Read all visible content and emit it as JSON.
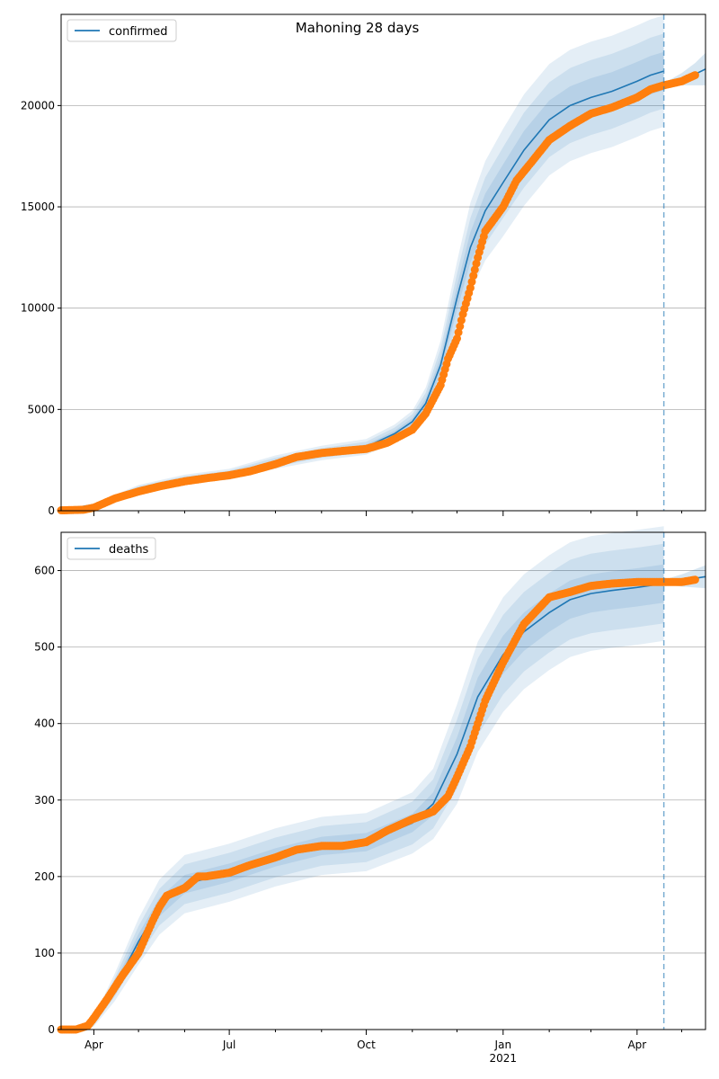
{
  "figure": {
    "title": "Mahoning 28 days"
  },
  "colors": {
    "model_line": "#1f77b4",
    "band": "#1f77b4",
    "observed": "#ff7f0e",
    "forecast_start": "#1f77b4",
    "grid": "#b0b0b0"
  },
  "x_axis": {
    "range": [
      "2020-03-10",
      "2021-05-17"
    ],
    "major_ticks": [
      {
        "date": "2020-04-01",
        "label": "Apr"
      },
      {
        "date": "2020-07-01",
        "label": "Jul"
      },
      {
        "date": "2020-10-01",
        "label": "Oct"
      },
      {
        "date": "2021-01-01",
        "label": "Jan",
        "sublabel": "2021"
      },
      {
        "date": "2021-04-01",
        "label": "Apr"
      }
    ],
    "minor_ticks": [
      "2020-05-01",
      "2020-06-01",
      "2020-08-01",
      "2020-09-01",
      "2020-11-01",
      "2020-12-01",
      "2021-02-01",
      "2021-03-01",
      "2021-05-01"
    ]
  },
  "forecast_start_date": "2021-04-19",
  "chart_data": [
    {
      "type": "line",
      "name": "confirmed",
      "legend": "confirmed",
      "legend_position": "top-left",
      "grid": "horizontal",
      "ylim": [
        0,
        24500
      ],
      "yticks": [
        0,
        5000,
        10000,
        15000,
        20000
      ],
      "model_x": [
        "2020-03-10",
        "2020-04-01",
        "2020-05-01",
        "2020-06-01",
        "2020-07-01",
        "2020-08-01",
        "2020-09-01",
        "2020-10-01",
        "2020-10-20",
        "2020-11-01",
        "2020-11-10",
        "2020-11-20",
        "2020-12-01",
        "2020-12-10",
        "2020-12-20",
        "2021-01-01",
        "2021-01-15",
        "2021-02-01",
        "2021-02-15",
        "2021-03-01",
        "2021-03-15",
        "2021-04-01",
        "2021-04-10",
        "2021-04-19"
      ],
      "model_y": [
        30,
        300,
        1100,
        1550,
        1800,
        2400,
        2850,
        3150,
        3800,
        4400,
        5300,
        7200,
        10500,
        13000,
        14800,
        16200,
        17800,
        19300,
        20000,
        20400,
        20700,
        21200,
        21500,
        21700
      ],
      "band_half_widths": [
        [
          0,
          20,
          50,
          70,
          80,
          100,
          110,
          120,
          140,
          170,
          250,
          400,
          600,
          750,
          850,
          900,
          950,
          950,
          950,
          950,
          950,
          950,
          950,
          950
        ],
        [
          0,
          40,
          110,
          150,
          180,
          220,
          240,
          260,
          300,
          360,
          520,
          800,
          1200,
          1450,
          1650,
          1750,
          1850,
          1850,
          1850,
          1850,
          1850,
          1850,
          1850,
          1850
        ],
        [
          0,
          60,
          170,
          230,
          270,
          330,
          360,
          390,
          450,
          540,
          780,
          1200,
          1800,
          2200,
          2450,
          2650,
          2750,
          2750,
          2750,
          2750,
          2750,
          2750,
          2750,
          2750
        ]
      ],
      "forecast_x": [
        "2021-04-19",
        "2021-05-01",
        "2021-05-10",
        "2021-05-17"
      ],
      "forecast_y": [
        21000,
        21300,
        21550,
        21800
      ],
      "forecast_half_width": [
        100,
        300,
        550,
        800
      ],
      "observed_x": [
        "2020-03-10",
        "2020-03-25",
        "2020-04-01",
        "2020-04-15",
        "2020-05-01",
        "2020-05-15",
        "2020-06-01",
        "2020-06-15",
        "2020-07-01",
        "2020-07-15",
        "2020-08-01",
        "2020-08-15",
        "2020-09-01",
        "2020-09-15",
        "2020-10-01",
        "2020-10-15",
        "2020-11-01",
        "2020-11-10",
        "2020-11-20",
        "2020-11-25",
        "2020-12-01",
        "2020-12-05",
        "2020-12-10",
        "2020-12-15",
        "2020-12-20",
        "2021-01-01",
        "2021-01-10",
        "2021-01-20",
        "2021-02-01",
        "2021-02-15",
        "2021-03-01",
        "2021-03-15",
        "2021-04-01",
        "2021-04-10",
        "2021-04-19",
        "2021-05-01",
        "2021-05-10"
      ],
      "observed_y": [
        20,
        50,
        150,
        600,
        950,
        1200,
        1450,
        1600,
        1750,
        1950,
        2300,
        2650,
        2850,
        2950,
        3050,
        3350,
        4000,
        4800,
        6200,
        7500,
        8500,
        9700,
        11000,
        12500,
        13800,
        15000,
        16300,
        17200,
        18300,
        19000,
        19600,
        19900,
        20400,
        20800,
        21000,
        21200,
        21500
      ]
    },
    {
      "type": "line",
      "name": "deaths",
      "legend": "deaths",
      "legend_position": "top-left",
      "grid": "horizontal",
      "ylim": [
        0,
        650
      ],
      "yticks": [
        0,
        100,
        200,
        300,
        400,
        500,
        600
      ],
      "model_x": [
        "2020-03-10",
        "2020-03-25",
        "2020-04-01",
        "2020-04-15",
        "2020-05-01",
        "2020-05-15",
        "2020-06-01",
        "2020-07-01",
        "2020-08-01",
        "2020-09-01",
        "2020-10-01",
        "2020-11-01",
        "2020-11-15",
        "2020-12-01",
        "2020-12-15",
        "2021-01-01",
        "2021-01-15",
        "2021-02-01",
        "2021-02-15",
        "2021-03-01",
        "2021-03-15",
        "2021-04-01",
        "2021-04-19"
      ],
      "model_y": [
        0,
        0,
        10,
        55,
        115,
        160,
        190,
        205,
        225,
        240,
        245,
        270,
        295,
        360,
        435,
        490,
        520,
        545,
        562,
        570,
        574,
        578,
        583
      ],
      "band_half_widths": [
        [
          0,
          0,
          2,
          6,
          10,
          12,
          12,
          12,
          12,
          12,
          12,
          12,
          15,
          22,
          25,
          25,
          25,
          25,
          25,
          25,
          25,
          25,
          25
        ],
        [
          0,
          0,
          4,
          12,
          20,
          24,
          26,
          26,
          26,
          26,
          26,
          28,
          32,
          45,
          50,
          52,
          52,
          52,
          52,
          52,
          52,
          52,
          52
        ],
        [
          0,
          0,
          6,
          18,
          30,
          36,
          38,
          38,
          38,
          38,
          38,
          40,
          46,
          65,
          72,
          75,
          75,
          75,
          75,
          75,
          75,
          75,
          75
        ]
      ],
      "forecast_x": [
        "2021-04-19",
        "2021-05-01",
        "2021-05-17"
      ],
      "forecast_y": [
        585,
        587,
        592
      ],
      "forecast_half_width": [
        3,
        8,
        15
      ],
      "observed_x": [
        "2020-03-10",
        "2020-03-20",
        "2020-03-28",
        "2020-04-01",
        "2020-04-10",
        "2020-04-20",
        "2020-05-01",
        "2020-05-10",
        "2020-05-15",
        "2020-05-20",
        "2020-06-01",
        "2020-06-10",
        "2020-06-15",
        "2020-07-01",
        "2020-07-15",
        "2020-08-01",
        "2020-08-15",
        "2020-09-01",
        "2020-09-15",
        "2020-10-01",
        "2020-10-15",
        "2020-11-01",
        "2020-11-15",
        "2020-11-25",
        "2020-12-01",
        "2020-12-10",
        "2020-12-20",
        "2021-01-01",
        "2021-01-15",
        "2021-02-01",
        "2021-02-15",
        "2021-03-01",
        "2021-03-15",
        "2021-04-01",
        "2021-04-19",
        "2021-05-01",
        "2021-05-10"
      ],
      "observed_y": [
        0,
        0,
        5,
        15,
        40,
        70,
        100,
        140,
        160,
        175,
        185,
        200,
        200,
        205,
        215,
        225,
        235,
        240,
        240,
        245,
        260,
        275,
        285,
        305,
        330,
        370,
        430,
        480,
        530,
        565,
        572,
        580,
        583,
        585,
        585,
        585,
        588
      ]
    }
  ]
}
